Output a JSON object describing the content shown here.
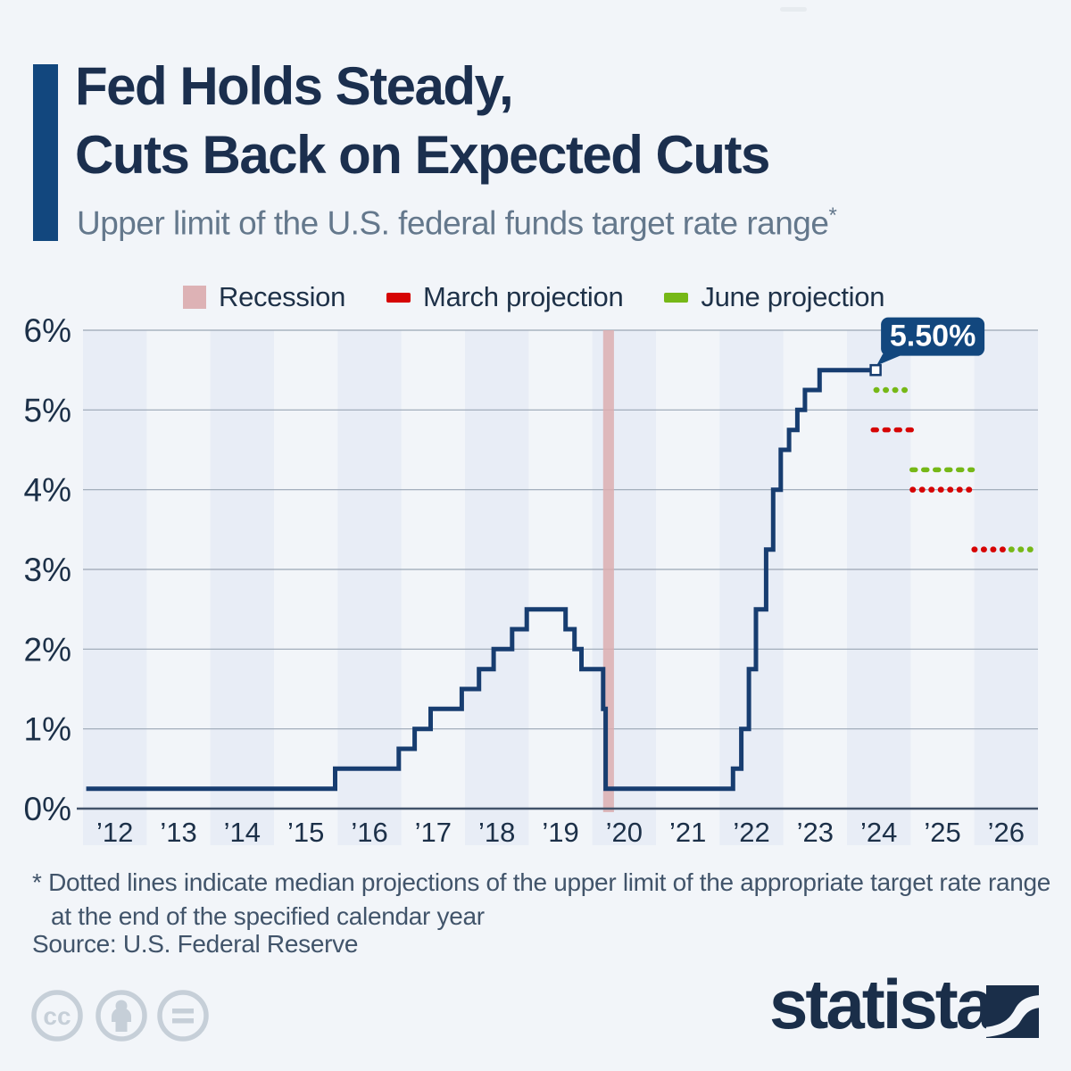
{
  "page": {
    "background": "#f2f5f9"
  },
  "header": {
    "title_line1": "Fed Holds Steady,",
    "title_line2": "Cuts Back on Expected Cuts",
    "subtitle": "Upper limit of the U.S. federal funds target rate range",
    "footnote_marker": "*",
    "accent_color": "#12477e"
  },
  "legend": [
    {
      "label": "Recession",
      "color": "#ddb2b5",
      "swatch": "area"
    },
    {
      "label": "March projection",
      "color": "#d60404",
      "swatch": "dash"
    },
    {
      "label": "June projection",
      "color": "#76b817",
      "swatch": "dash"
    }
  ],
  "chart_data": {
    "type": "line",
    "subtype": "step",
    "title": "Fed Holds Steady, Cuts Back on Expected Cuts",
    "subtitle": "Upper limit of the U.S. federal funds target rate range*",
    "grid": true,
    "x_range": [
      2012,
      2027
    ],
    "y_range": [
      0,
      6
    ],
    "x_ticks": [
      "’12",
      "’13",
      "’14",
      "’15",
      "’16",
      "’17",
      "’18",
      "’19",
      "’20",
      "’21",
      "’22",
      "’23",
      "’24",
      "’25",
      "’26"
    ],
    "y_ticks": [
      {
        "label": "6%",
        "value": 6
      },
      {
        "label": "5%",
        "value": 5
      },
      {
        "label": "4%",
        "value": 4
      },
      {
        "label": "3%",
        "value": 3
      },
      {
        "label": "2%",
        "value": 2
      },
      {
        "label": "1%",
        "value": 1
      },
      {
        "label": "0%",
        "value": 0
      }
    ],
    "series": [
      {
        "name": "Upper limit of the U.S. federal funds target rate range",
        "color": "#173d70",
        "points": [
          [
            2012.05,
            0.25
          ],
          [
            2015.96,
            0.5
          ],
          [
            2016.96,
            0.75
          ],
          [
            2017.21,
            1.0
          ],
          [
            2017.46,
            1.25
          ],
          [
            2017.95,
            1.5
          ],
          [
            2018.22,
            1.75
          ],
          [
            2018.45,
            2.0
          ],
          [
            2018.74,
            2.25
          ],
          [
            2018.97,
            2.5
          ],
          [
            2019.58,
            2.25
          ],
          [
            2019.72,
            2.0
          ],
          [
            2019.83,
            1.75
          ],
          [
            2020.17,
            1.25
          ],
          [
            2020.21,
            0.25
          ],
          [
            2022.21,
            0.5
          ],
          [
            2022.34,
            1.0
          ],
          [
            2022.46,
            1.75
          ],
          [
            2022.57,
            2.5
          ],
          [
            2022.73,
            3.25
          ],
          [
            2022.84,
            4.0
          ],
          [
            2022.96,
            4.5
          ],
          [
            2023.09,
            4.75
          ],
          [
            2023.22,
            5.0
          ],
          [
            2023.34,
            5.25
          ],
          [
            2023.57,
            5.5
          ],
          [
            2024.45,
            5.5
          ]
        ]
      }
    ],
    "end_label": "5.50%",
    "end_label_bg": "#12477e",
    "recession_band": {
      "label": "Recession",
      "from": 2020.17,
      "to": 2020.34,
      "color": "#dcaeb0"
    },
    "projections": [
      {
        "series": "June projection",
        "target_year": 2024,
        "value": 5.25,
        "from": 2024.46,
        "to": 2025.0,
        "color": "#76b817",
        "style": "dots"
      },
      {
        "series": "March projection",
        "target_year": 2024,
        "value": 4.75,
        "from": 2024.41,
        "to": 2025.03,
        "color": "#d60404",
        "style": "dashes"
      },
      {
        "series": "June projection",
        "target_year": 2025,
        "value": 4.25,
        "from": 2025.02,
        "to": 2025.97,
        "color": "#76b817",
        "style": "dashes"
      },
      {
        "series": "March projection",
        "target_year": 2025,
        "value": 4.0,
        "from": 2025.03,
        "to": 2026.0,
        "color": "#d60404",
        "style": "dots"
      },
      {
        "series": "March projection",
        "target_year": 2026,
        "value": 3.25,
        "from": 2026.0,
        "to": 2026.52,
        "color": "#d60404",
        "style": "dots"
      },
      {
        "series": "June projection",
        "target_year": 2026,
        "value": 3.25,
        "from": 2026.58,
        "to": 2027.0,
        "color": "#76b817",
        "style": "dots"
      }
    ],
    "colors": {
      "band_shaded": "#e8edf6",
      "gridline": "#9aa6b4",
      "axis_line": "#42536a",
      "tick_label": "#1c3048"
    }
  },
  "footnote": {
    "line1": "* Dotted lines indicate median projections of the upper limit of the appropriate target rate range",
    "line2": "at the end of the specified calendar year"
  },
  "source": {
    "text": "Source: U.S. Federal Reserve"
  },
  "footer": {
    "license_icons": [
      "cc",
      "attribution",
      "no-derivatives"
    ],
    "icon_color": "#c6cfd8",
    "brand_text": "statista",
    "brand_color": "#1a2e49"
  }
}
